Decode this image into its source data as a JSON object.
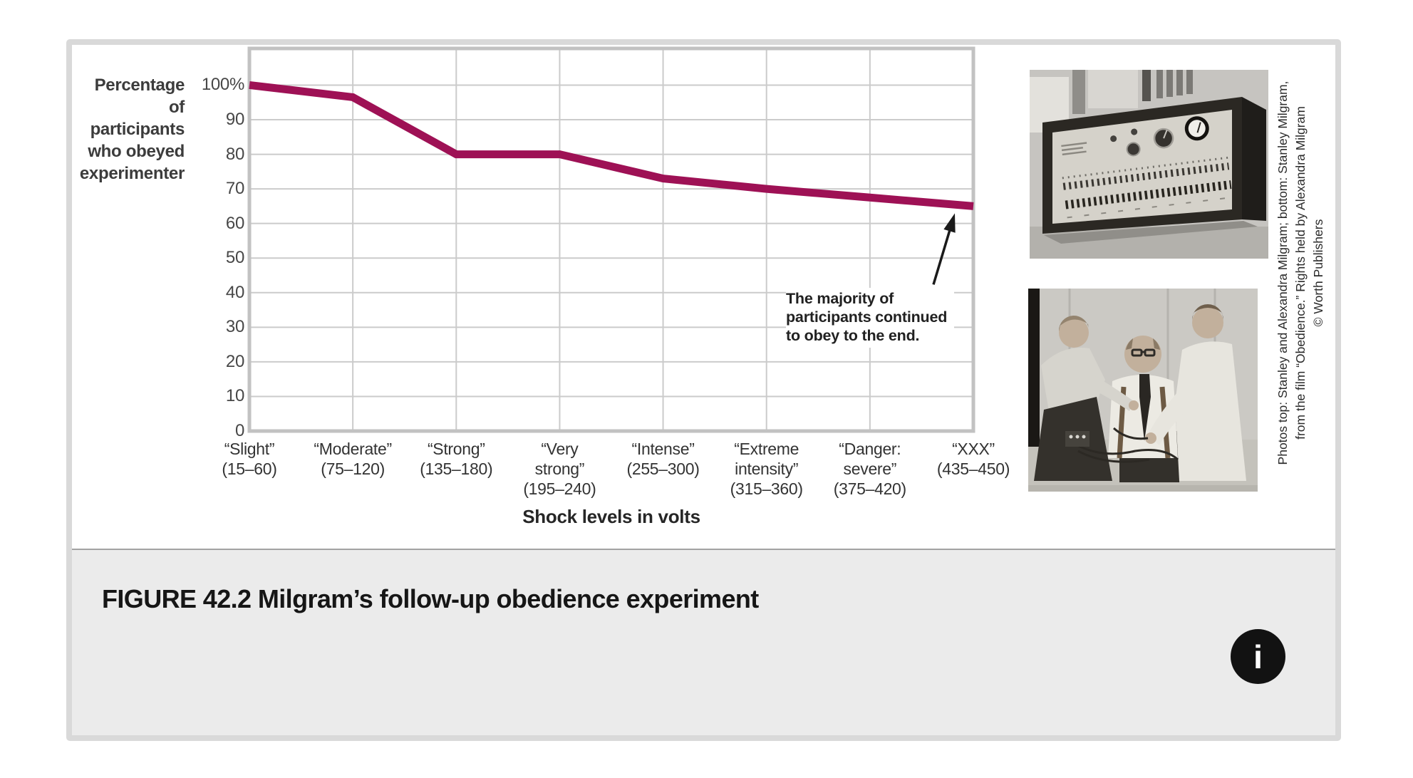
{
  "chart_data": {
    "type": "line",
    "title": "",
    "xlabel": "Shock levels in volts",
    "ylabel": "Percentage of participants who obeyed experimenter",
    "ylabel_lines": [
      "Percentage",
      "of participants",
      "who obeyed",
      "experimenter"
    ],
    "categories": [
      "“Slight”\n(15–60)",
      "“Moderate”\n(75–120)",
      "“Strong”\n(135–180)",
      "“Very\nstrong”\n(195–240)",
      "“Intense”\n(255–300)",
      "“Extreme\nintensity”\n(315–360)",
      "“Danger:\nsevere”\n(375–420)",
      "“XXX”\n(435–450)"
    ],
    "values": [
      100,
      96.5,
      80,
      80,
      73,
      70,
      67.5,
      65
    ],
    "ylim": [
      0,
      100
    ],
    "yticks": [
      "100%",
      "90",
      "80",
      "70",
      "60",
      "50",
      "40",
      "30",
      "20",
      "10",
      "0"
    ],
    "grid": true,
    "legend": "none",
    "annotation": "The majority of\nparticipants continued\nto obey to the end."
  },
  "photos": {
    "credit_lines": [
      "Photos top: Stanley and Alexandra Milgram; bottom: Stanley Milgram,",
      "from the film “Obedience.” Rights held by Alexandra Milgram",
      "© Worth Publishers"
    ]
  },
  "caption": {
    "text": "FIGURE 42.2 Milgram’s follow-up obedience experiment"
  },
  "info_button": {
    "glyph": "i"
  },
  "colors": {
    "line": "#9e1155",
    "grid": "#cbcbcb",
    "plot_border": "#c2c2c2",
    "caption_bg": "#ebebeb",
    "card_border": "#d9d9d9",
    "annotation_arrow": "#1a1a1a"
  }
}
